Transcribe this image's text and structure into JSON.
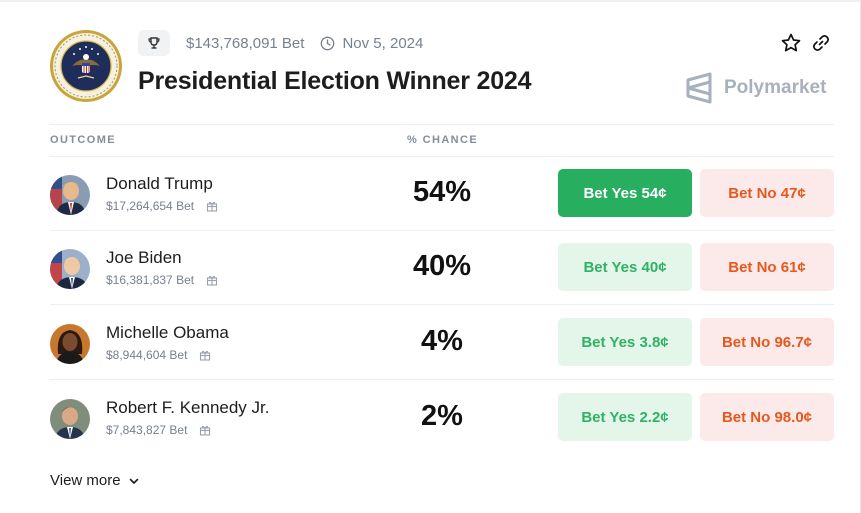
{
  "header": {
    "seal_icon": "presidential-seal-icon",
    "volume": "$143,768,091 Bet",
    "end_date": "Nov 5, 2024",
    "title": "Presidential Election Winner 2024"
  },
  "brand": {
    "name": "Polymarket",
    "color": "#a8b0bc"
  },
  "table": {
    "outcome_header": "OUTCOME",
    "chance_header": "% CHANCE"
  },
  "outcomes": [
    {
      "name": "Donald Trump",
      "volume": "$17,264,654 Bet",
      "chance": "54%",
      "yes": "Bet Yes 54¢",
      "no": "Bet No 47¢"
    },
    {
      "name": "Joe Biden",
      "volume": "$16,381,837 Bet",
      "chance": "40%",
      "yes": "Bet Yes 40¢",
      "no": "Bet No 61¢"
    },
    {
      "name": "Michelle Obama",
      "volume": "$8,944,604 Bet",
      "chance": "4%",
      "yes": "Bet Yes 3.8¢",
      "no": "Bet No 96.7¢"
    },
    {
      "name": "Robert F. Kennedy Jr.",
      "volume": "$7,843,827 Bet",
      "chance": "2%",
      "yes": "Bet Yes 2.2¢",
      "no": "Bet No 98.0¢"
    }
  ],
  "footer": {
    "view_more": "View more"
  },
  "colors": {
    "yes_active": "#27ae5f",
    "yes_text": "#30b266",
    "yes_bg": "#e4f5ea",
    "no_text": "#e4591e",
    "no_bg": "#fce9e9"
  }
}
